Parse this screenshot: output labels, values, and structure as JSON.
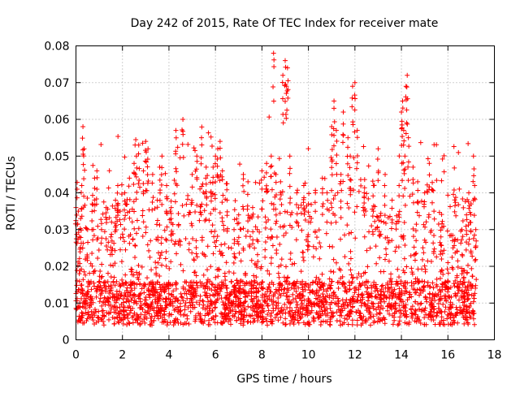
{
  "chart_data": {
    "type": "scatter",
    "title": "Day 242 of 2015, Rate Of TEC Index for receiver mate",
    "xlabel": "GPS time / hours",
    "ylabel": "ROTI / TECUs",
    "xlim": [
      0,
      18
    ],
    "ylim": [
      0,
      0.08
    ],
    "xticks": [
      0,
      2,
      4,
      6,
      8,
      10,
      12,
      14,
      16,
      18
    ],
    "xtick_labels": [
      "0",
      "2",
      "4",
      "6",
      "8",
      "10",
      "12",
      "14",
      "16",
      "18"
    ],
    "yticks": [
      0,
      0.01,
      0.02,
      0.03,
      0.04,
      0.05,
      0.06,
      0.07,
      0.08
    ],
    "ytick_labels": [
      "0",
      "0.01",
      "0.02",
      "0.03",
      "0.04",
      "0.05",
      "0.06",
      "0.07",
      "0.08"
    ],
    "grid": true,
    "marker": "plus",
    "marker_color": "#ff0000",
    "series": [
      {
        "name": "ROTI",
        "x_range": [
          0,
          17.2
        ],
        "typical_range": [
          0.003,
          0.045
        ],
        "points": [
          [
            0.0,
            0.036
          ],
          [
            0.05,
            0.041
          ],
          [
            0.1,
            0.035
          ],
          [
            0.15,
            0.028
          ],
          [
            0.2,
            0.033
          ],
          [
            0.25,
            0.042
          ],
          [
            0.3,
            0.058
          ],
          [
            0.35,
            0.052
          ],
          [
            0.5,
            0.03
          ],
          [
            0.7,
            0.037
          ],
          [
            0.8,
            0.044
          ],
          [
            0.9,
            0.046
          ],
          [
            1.1,
            0.03
          ],
          [
            1.3,
            0.036
          ],
          [
            1.5,
            0.028
          ],
          [
            1.7,
            0.038
          ],
          [
            1.8,
            0.042
          ],
          [
            1.9,
            0.035
          ],
          [
            2.1,
            0.04
          ],
          [
            2.3,
            0.044
          ],
          [
            2.5,
            0.048
          ],
          [
            2.6,
            0.05
          ],
          [
            2.7,
            0.053
          ],
          [
            2.9,
            0.046
          ],
          [
            3.0,
            0.054
          ],
          [
            3.1,
            0.052
          ],
          [
            3.3,
            0.045
          ],
          [
            3.5,
            0.038
          ],
          [
            3.6,
            0.047
          ],
          [
            3.7,
            0.05
          ],
          [
            3.9,
            0.042
          ],
          [
            4.1,
            0.036
          ],
          [
            4.3,
            0.057
          ],
          [
            4.6,
            0.06
          ],
          [
            5.0,
            0.045
          ],
          [
            5.2,
            0.05
          ],
          [
            5.4,
            0.055
          ],
          [
            5.6,
            0.047
          ],
          [
            5.8,
            0.04
          ],
          [
            5.9,
            0.047
          ],
          [
            6.0,
            0.05
          ],
          [
            6.1,
            0.052
          ],
          [
            6.2,
            0.054
          ],
          [
            6.3,
            0.046
          ],
          [
            6.5,
            0.038
          ],
          [
            6.8,
            0.03
          ],
          [
            7.0,
            0.034
          ],
          [
            7.2,
            0.045
          ],
          [
            7.4,
            0.043
          ],
          [
            7.6,
            0.036
          ],
          [
            7.8,
            0.03
          ],
          [
            8.0,
            0.046
          ],
          [
            8.2,
            0.048
          ],
          [
            8.4,
            0.05
          ],
          [
            8.5,
            0.078
          ],
          [
            8.6,
            0.045
          ],
          [
            8.8,
            0.043
          ],
          [
            8.9,
            0.072
          ],
          [
            9.0,
            0.076
          ],
          [
            9.05,
            0.069
          ],
          [
            9.1,
            0.074
          ],
          [
            9.2,
            0.05
          ],
          [
            9.5,
            0.04
          ],
          [
            9.8,
            0.042
          ],
          [
            10.0,
            0.037
          ],
          [
            10.3,
            0.04
          ],
          [
            10.6,
            0.044
          ],
          [
            10.8,
            0.04
          ],
          [
            11.0,
            0.058
          ],
          [
            11.1,
            0.065
          ],
          [
            11.2,
            0.057
          ],
          [
            11.4,
            0.045
          ],
          [
            11.5,
            0.062
          ],
          [
            11.7,
            0.055
          ],
          [
            11.8,
            0.05
          ],
          [
            11.9,
            0.069
          ],
          [
            12.0,
            0.07
          ],
          [
            12.1,
            0.057
          ],
          [
            12.4,
            0.04
          ],
          [
            12.8,
            0.042
          ],
          [
            13.0,
            0.052
          ],
          [
            13.3,
            0.045
          ],
          [
            13.6,
            0.038
          ],
          [
            13.9,
            0.042
          ],
          [
            14.0,
            0.062
          ],
          [
            14.05,
            0.065
          ],
          [
            14.1,
            0.057
          ],
          [
            14.15,
            0.05
          ],
          [
            14.2,
            0.069
          ],
          [
            14.25,
            0.072
          ],
          [
            14.3,
            0.055
          ],
          [
            14.5,
            0.047
          ],
          [
            14.7,
            0.043
          ],
          [
            15.0,
            0.04
          ],
          [
            15.2,
            0.048
          ],
          [
            15.4,
            0.035
          ],
          [
            15.7,
            0.028
          ],
          [
            16.0,
            0.021
          ],
          [
            16.2,
            0.027
          ],
          [
            16.4,
            0.024
          ],
          [
            16.6,
            0.03
          ],
          [
            16.8,
            0.034
          ],
          [
            16.9,
            0.04
          ],
          [
            17.0,
            0.037
          ],
          [
            17.1,
            0.05
          ],
          [
            17.15,
            0.042
          ],
          [
            17.2,
            0.03
          ]
        ]
      }
    ]
  }
}
